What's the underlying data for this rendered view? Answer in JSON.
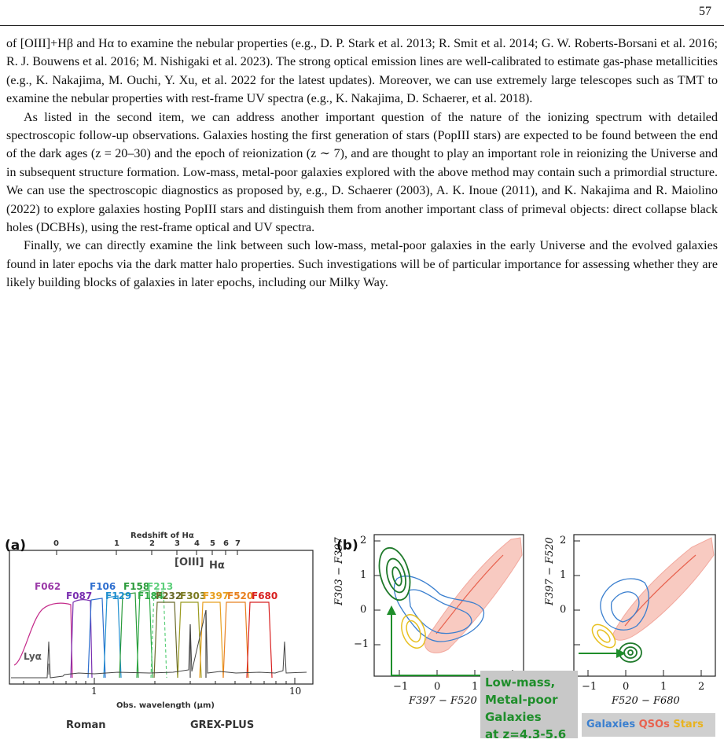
{
  "page_number": "57",
  "paragraphs": [
    "of [OIII]+Hβ and Hα to examine the nebular properties (e.g., D. P. Stark et al. 2013; R. Smit et al. 2014; G. W. Roberts-Borsani et al. 2016; R. J. Bouwens et al. 2016; M. Nishigaki et al. 2023). The strong optical emission lines are well-calibrated to estimate gas-phase metallicities (e.g., K. Nakajima, M. Ouchi, Y. Xu, et al. 2022 for the latest updates). Moreover, we can use extremely large telescopes such as TMT to examine the nebular properties with rest-frame UV spectra (e.g., K. Nakajima, D. Schaerer, et al. 2018).",
    "As listed in the second item, we can address another important question of the nature of the ionizing spectrum with detailed spectroscopic follow-up observations. Galaxies hosting the first generation of stars (PopIII stars) are expected to be found between the end of the dark ages (z = 20–30) and the epoch of reionization (z ∼ 7), and are thought to play an important role in reionizing the Universe and in subsequent structure formation. Low-mass, metal-poor galaxies explored with the above method may contain such a primordial structure. We can use the spectroscopic diagnostics as proposed by, e.g., D. Schaerer (2003), A. K. Inoue (2011), and K. Nakajima and R. Maiolino (2022) to explore galaxies hosting PopIII stars and distinguish them from another important class of primeval objects: direct collapse black holes (DCBHs), using the rest-frame optical and UV spectra.",
    "Finally, we can directly examine the link between such low-mass, metal-poor galaxies in the early Universe and the evolved galaxies found in later epochs via the dark matter halo properties. Such investigations will be of particular importance for assessing whether they are likely building blocks of galaxies in later epochs, including our Milky Way."
  ],
  "figure": {
    "panel_a": {
      "label": "(a)",
      "top_axis_label": "Redshift of Hα",
      "top_ticks": [
        "0",
        "1",
        "2",
        "3",
        "4",
        "5",
        "6",
        "7"
      ],
      "bottom_axis_label": "Obs. wavelength (μm)",
      "bottom_ticks": [
        "1",
        "10"
      ],
      "line_labels": [
        "[OIII]",
        "Hα"
      ],
      "lya_label": "Lyα",
      "telescopes": [
        "Roman",
        "GREX-PLUS"
      ],
      "filters": [
        {
          "name": "F062",
          "color": "#9b3aa8"
        },
        {
          "name": "F087",
          "color": "#7a2fb0"
        },
        {
          "name": "F106",
          "color": "#2f6fcf"
        },
        {
          "name": "F129",
          "color": "#1f8fcf"
        },
        {
          "name": "F158",
          "color": "#2a9a3a"
        },
        {
          "name": "F184",
          "color": "#2faa45"
        },
        {
          "name": "F213",
          "color": "#5ccf7a"
        },
        {
          "name": "F232",
          "color": "#6a6a2a"
        },
        {
          "name": "F303",
          "color": "#7a7a20"
        },
        {
          "name": "F397",
          "color": "#e8a020"
        },
        {
          "name": "F520",
          "color": "#e88020"
        },
        {
          "name": "F680",
          "color": "#d82020"
        }
      ]
    },
    "panel_b": {
      "label": "(b)",
      "left_xlabel": "F397 − F520",
      "left_ylabel": "F303 − F397",
      "right_xlabel": "F520 − F680",
      "right_ylabel": "F397 − F520",
      "y_ticks": [
        "2",
        "1",
        "0",
        "−1"
      ],
      "left_x_ticks": [
        "−1",
        "0",
        "1"
      ],
      "right_x_ticks": [
        "−1",
        "0",
        "1",
        "2"
      ],
      "callout": [
        "Low-mass,",
        "Metal-poor",
        "Galaxies",
        "at z=4.3-5.6"
      ],
      "legend": {
        "galaxies": "Galaxies",
        "qsos": "QSOs",
        "stars": "Stars"
      },
      "colors": {
        "galaxies": "#3a7fcf",
        "qsos": "#e8624f",
        "stars": "#e8c020",
        "target": "#1f7a2b"
      }
    }
  }
}
